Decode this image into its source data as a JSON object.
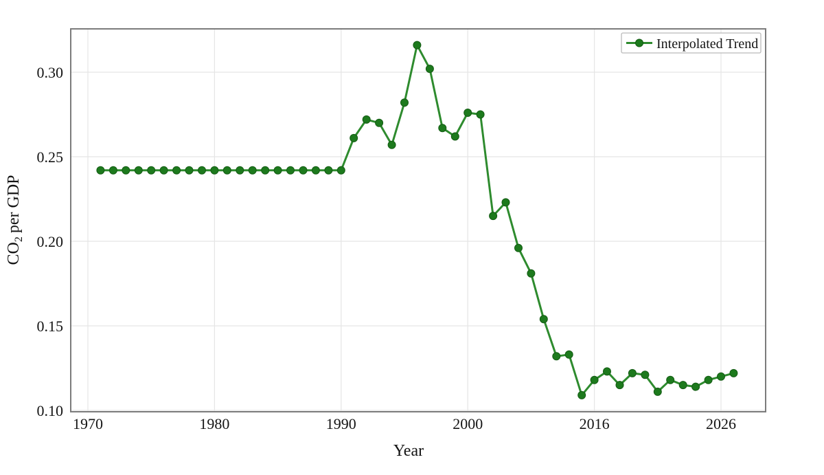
{
  "figure": {
    "background_color": "#ffffff",
    "text_color": "#141414",
    "grid_color": "#e5e5e5",
    "frame_color": "#7b7b7b"
  },
  "chart_data": {
    "type": "line",
    "title": "",
    "xlabel": "Year",
    "ylabel": "CO₂ per GDP",
    "ylabel_parts": {
      "prefix": "CO",
      "sub": "2",
      "suffix": "per GDP"
    },
    "grid": true,
    "x_axis": {
      "axis_type": "categorical-index",
      "tick_labels": [
        "1970",
        "1980",
        "1990",
        "2000",
        "2016",
        "2026"
      ],
      "tick_indices": [
        0,
        10,
        20,
        30,
        40,
        50
      ],
      "index_range": [
        -1.4,
        53.6
      ]
    },
    "y_axis": {
      "ticks": [
        0.1,
        0.15,
        0.2,
        0.25,
        0.3
      ],
      "tick_labels": [
        "0.10",
        "0.15",
        "0.20",
        "0.25",
        "0.30"
      ],
      "range": [
        0.1,
        0.326
      ]
    },
    "legend": {
      "label": "Interpolated Trend",
      "position": "top-right"
    },
    "series": [
      {
        "name": "Interpolated Trend",
        "line_color": "#2e8b2e",
        "marker": "circle",
        "marker_color": "#1d7a1d",
        "marker_edge_color": "#145c14",
        "points": [
          [
            1,
            0.242
          ],
          [
            2,
            0.242
          ],
          [
            3,
            0.242
          ],
          [
            4,
            0.242
          ],
          [
            5,
            0.242
          ],
          [
            6,
            0.242
          ],
          [
            7,
            0.242
          ],
          [
            8,
            0.242
          ],
          [
            9,
            0.242
          ],
          [
            10,
            0.242
          ],
          [
            11,
            0.242
          ],
          [
            12,
            0.242
          ],
          [
            13,
            0.242
          ],
          [
            14,
            0.242
          ],
          [
            15,
            0.242
          ],
          [
            16,
            0.242
          ],
          [
            17,
            0.242
          ],
          [
            18,
            0.242
          ],
          [
            19,
            0.242
          ],
          [
            20,
            0.242
          ],
          [
            21,
            0.261
          ],
          [
            22,
            0.272
          ],
          [
            23,
            0.27
          ],
          [
            24,
            0.257
          ],
          [
            25,
            0.282
          ],
          [
            26,
            0.316
          ],
          [
            27,
            0.302
          ],
          [
            28,
            0.267
          ],
          [
            29,
            0.262
          ],
          [
            30,
            0.276
          ],
          [
            31,
            0.275
          ],
          [
            32,
            0.215
          ],
          [
            33,
            0.223
          ],
          [
            34,
            0.196
          ],
          [
            35,
            0.181
          ],
          [
            36,
            0.154
          ],
          [
            37,
            0.132
          ],
          [
            38,
            0.133
          ],
          [
            39,
            0.109
          ],
          [
            40,
            0.118
          ],
          [
            41,
            0.123
          ],
          [
            42,
            0.115
          ],
          [
            43,
            0.122
          ],
          [
            44,
            0.121
          ],
          [
            45,
            0.111
          ],
          [
            46,
            0.118
          ],
          [
            47,
            0.115
          ],
          [
            48,
            0.114
          ],
          [
            49,
            0.118
          ],
          [
            50,
            0.12
          ],
          [
            51,
            0.122
          ]
        ]
      }
    ]
  }
}
